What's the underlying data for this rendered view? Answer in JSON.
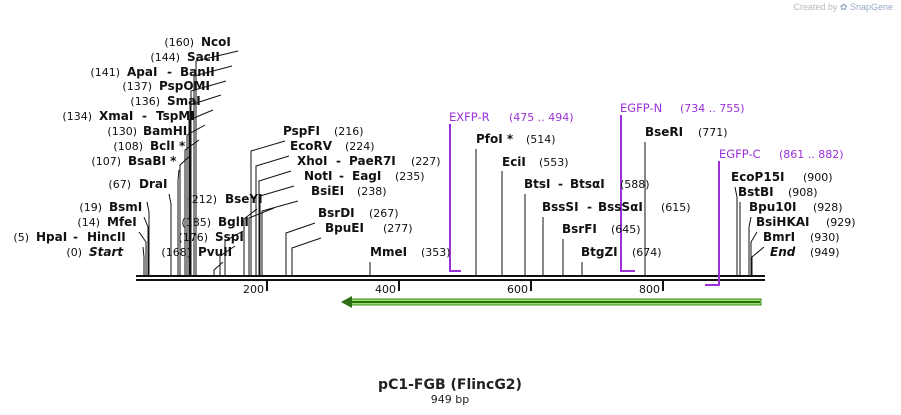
{
  "credit": {
    "prefix": "Created by",
    "brand": "SnapGene"
  },
  "map": {
    "title": "pC1-FGB (FlincG2)",
    "length_label": "949 bp",
    "length_bp": 949,
    "ticks": [
      "200",
      "400",
      "600",
      "800"
    ],
    "colors": {
      "primer": "#9b30d9",
      "feature_fill": "#9bdc6b",
      "feature_stroke": "#3a8a1f",
      "line": "#111111"
    }
  },
  "enzymes": [
    {
      "pos": "(0)",
      "name": "Start",
      "italic": true
    },
    {
      "pos": "(5)",
      "name": "HpaI",
      "alt": "HincII"
    },
    {
      "pos": "(14)",
      "name": "MfeI"
    },
    {
      "pos": "(19)",
      "name": "BsmI"
    },
    {
      "pos": "(67)",
      "name": "DraI"
    },
    {
      "pos": "(107)",
      "name": "BsaBI *"
    },
    {
      "pos": "(108)",
      "name": "BclI *"
    },
    {
      "pos": "(130)",
      "name": "BamHI"
    },
    {
      "pos": "(134)",
      "name": "XmaI",
      "alt": "TspMI"
    },
    {
      "pos": "(136)",
      "name": "SmaI"
    },
    {
      "pos": "(137)",
      "name": "PspOMI"
    },
    {
      "pos": "(141)",
      "name": "ApaI",
      "alt": "BanII"
    },
    {
      "pos": "(144)",
      "name": "SacII"
    },
    {
      "pos": "(160)",
      "name": "NcoI"
    },
    {
      "pos": "(168)",
      "name": "PvuII"
    },
    {
      "pos": "(176)",
      "name": "SspI"
    },
    {
      "pos": "(185)",
      "name": "BglII"
    },
    {
      "pos": "(212)",
      "name": "BseYI"
    },
    {
      "pos": "(216)",
      "name": "PspFI"
    },
    {
      "pos": "(224)",
      "name": "EcoRV"
    },
    {
      "pos": "(227)",
      "name": "XhoI",
      "alt": "PaeR7I"
    },
    {
      "pos": "(235)",
      "name": "NotI",
      "alt": "EagI"
    },
    {
      "pos": "(238)",
      "name": "BsiEI"
    },
    {
      "pos": "(267)",
      "name": "BsrDI"
    },
    {
      "pos": "(277)",
      "name": "BpuEI"
    },
    {
      "pos": "(353)",
      "name": "MmeI"
    },
    {
      "pos": "(514)",
      "name": "PfoI *"
    },
    {
      "pos": "(553)",
      "name": "EciI"
    },
    {
      "pos": "(588)",
      "name": "BtsI",
      "alt": "BtsαI"
    },
    {
      "pos": "(615)",
      "name": "BssSI",
      "alt": "BssSαI"
    },
    {
      "pos": "(645)",
      "name": "BsrFI"
    },
    {
      "pos": "(674)",
      "name": "BtgZI"
    },
    {
      "pos": "(771)",
      "name": "BseRI"
    },
    {
      "pos": "(900)",
      "name": "EcoP15I"
    },
    {
      "pos": "(908)",
      "name": "BstBI"
    },
    {
      "pos": "(928)",
      "name": "Bpu10I"
    },
    {
      "pos": "(929)",
      "name": "BsiHKAI"
    },
    {
      "pos": "(930)",
      "name": "BmrI"
    },
    {
      "pos": "(949)",
      "name": "End",
      "italic": true
    }
  ],
  "primers": [
    {
      "name": "EXFP-R",
      "range": "(475 .. 494)"
    },
    {
      "name": "EGFP-N",
      "range": "(734 .. 755)"
    },
    {
      "name": "EGFP-C",
      "range": "(861 .. 882)"
    }
  ]
}
